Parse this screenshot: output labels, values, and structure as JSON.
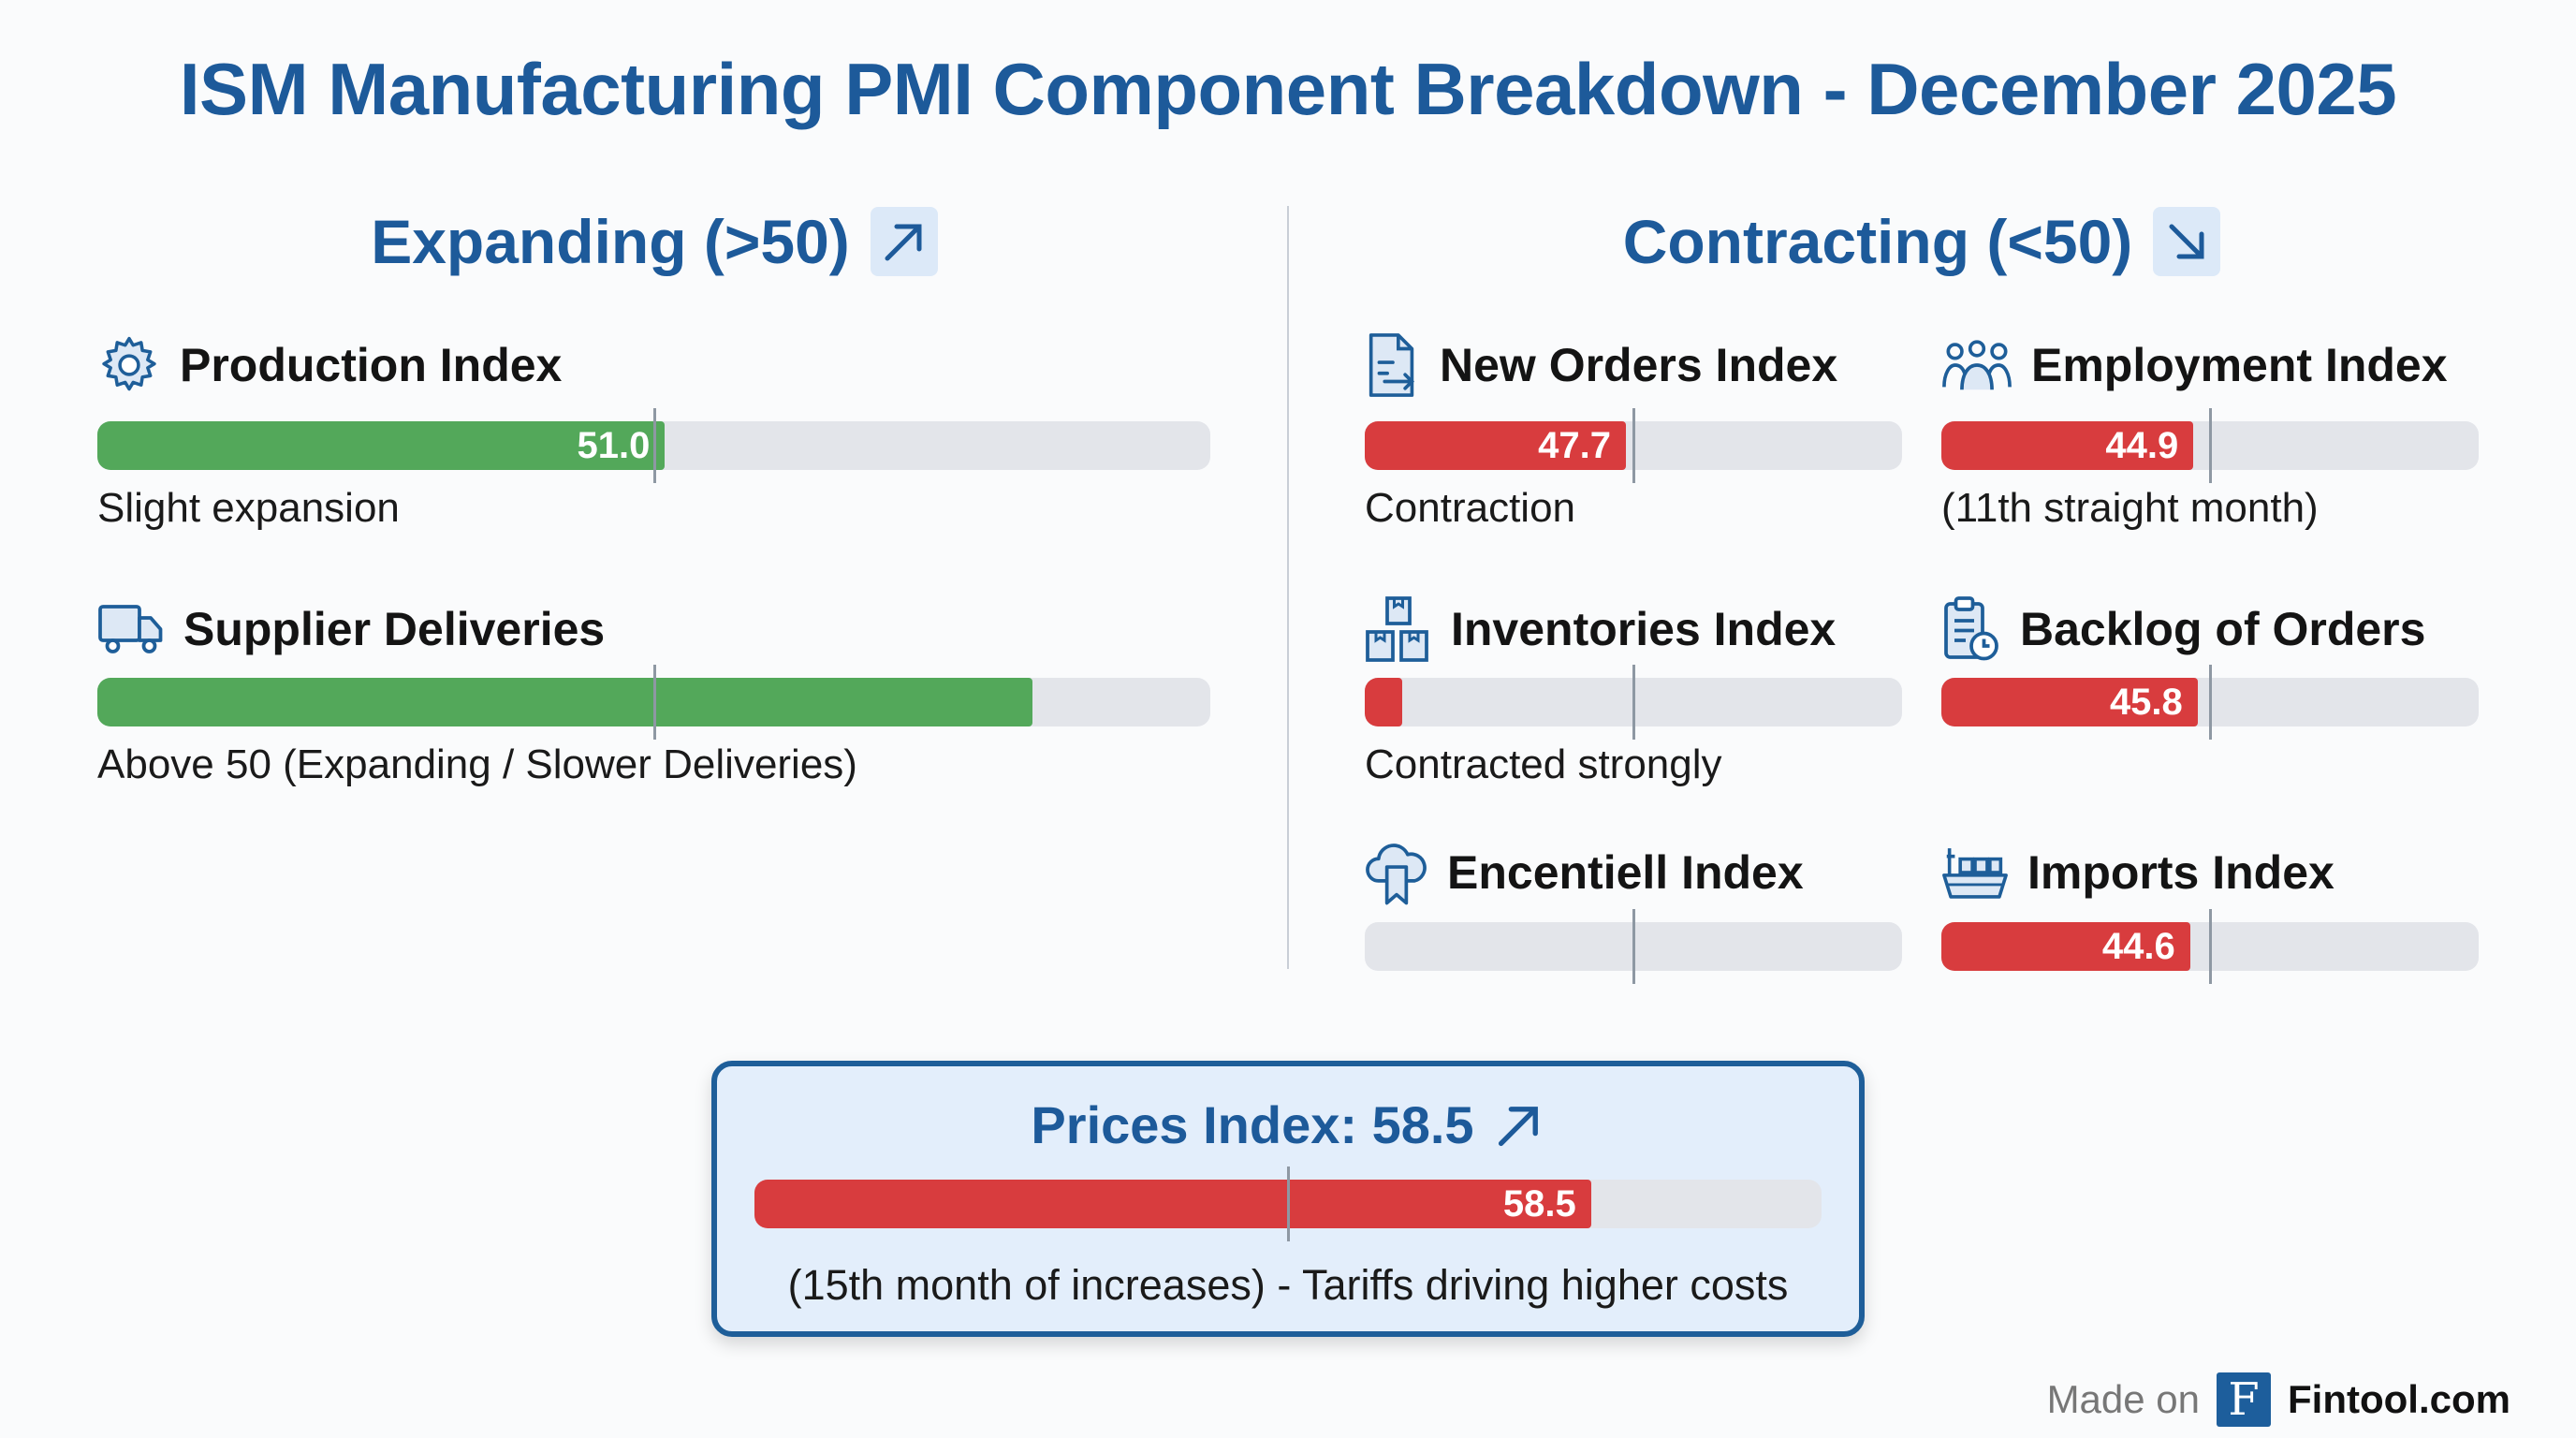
{
  "title": "ISM Manufacturing PMI Component Breakdown - December 2025",
  "sections": {
    "expanding": {
      "heading": "Expanding (>50)",
      "trend_icon": "arrow-up-right-icon"
    },
    "contracting": {
      "heading": "Contracting (<50)",
      "trend_icon": "arrow-down-right-icon"
    }
  },
  "colors": {
    "title": "#1d5a9a",
    "expanding_bar": "#53a85a",
    "contracting_bar": "#d83c3e",
    "track": "#e3e5ea",
    "marker": "#8e98a3"
  },
  "chart_data": {
    "type": "bar",
    "title": "ISM Manufacturing PMI Component Breakdown - December 2025",
    "threshold": 50,
    "orientation": "horizontal",
    "series": [
      {
        "group": "expanding",
        "name": "Production Index",
        "value": 51.0,
        "value_label": "51.0",
        "fill_fraction": 0.51,
        "note": "Slight expansion",
        "icon": "gear-icon"
      },
      {
        "group": "expanding",
        "name": "Supplier Deliveries",
        "value": null,
        "value_label": "",
        "fill_fraction": 0.84,
        "note": "Above 50 (Expanding / Slower Deliveries)",
        "icon": "truck-icon"
      },
      {
        "group": "contracting",
        "name": "New Orders Index",
        "value": 47.7,
        "value_label": "47.7",
        "fill_fraction": 0.486,
        "note": "Contraction",
        "icon": "document-arrow-icon"
      },
      {
        "group": "contracting",
        "name": "Employment Index",
        "value": 44.9,
        "value_label": "44.9",
        "fill_fraction": 0.469,
        "note": "(11th straight month)",
        "icon": "people-icon"
      },
      {
        "group": "contracting",
        "name": "Inventories Index",
        "value": null,
        "value_label": "",
        "fill_fraction": 0.07,
        "note": "Contracted strongly",
        "icon": "boxes-icon"
      },
      {
        "group": "contracting",
        "name": "Backlog of Orders",
        "value": 45.8,
        "value_label": "45.8",
        "fill_fraction": 0.477,
        "note": "",
        "icon": "clipboard-clock-icon"
      },
      {
        "group": "contracting",
        "name": "Encentiell Index",
        "value": null,
        "value_label": "",
        "fill_fraction": 0,
        "note": "",
        "icon": "cloud-bookmark-icon"
      },
      {
        "group": "contracting",
        "name": "Imports Index",
        "value": 44.6,
        "value_label": "44.6",
        "fill_fraction": 0.463,
        "note": "",
        "icon": "ship-icon"
      }
    ],
    "highlight": {
      "name": "Prices Index",
      "heading": "Prices Index: 58.5",
      "value": 58.5,
      "value_label": "58.5",
      "fill_fraction": 0.784,
      "note": "(15th month of increases) - Tariffs driving higher costs",
      "trend_icon": "arrow-up-right-icon"
    }
  },
  "footer": {
    "made_on": "Made on",
    "logo_letter": "F",
    "brand": "Fintool.com"
  }
}
